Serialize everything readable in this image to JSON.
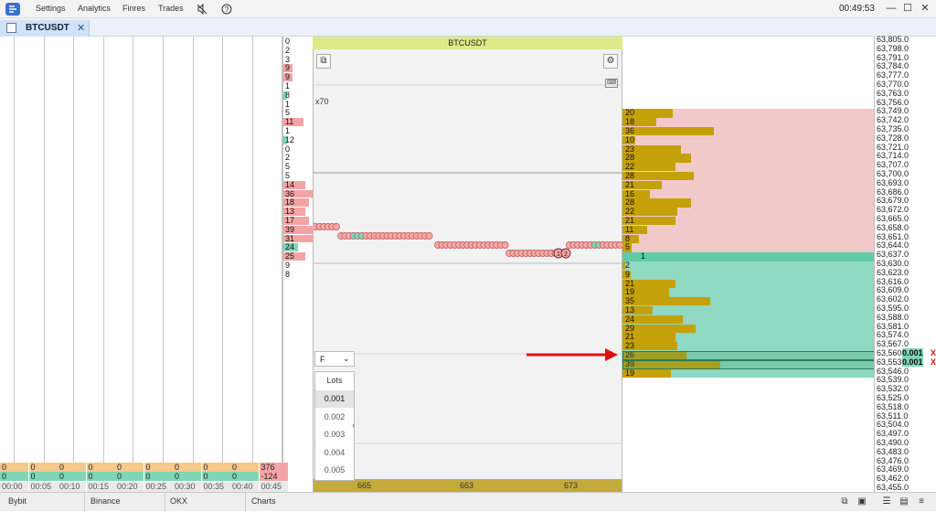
{
  "app": {
    "logo_icon": "app-logo-icon",
    "time": "00:49:53"
  },
  "menu": [
    "Settings",
    "Analytics",
    "Finres",
    "Trades"
  ],
  "menu_icons": [
    "mute-icon",
    "help-icon"
  ],
  "window_controls": {
    "minimize": "—",
    "maximize": "☐",
    "close": "✕"
  },
  "tab": {
    "label": "BTCUSDT",
    "close": "✕"
  },
  "chart": {
    "title": "BTCUSDT",
    "scale_label": "x70",
    "bottom_labels": [
      "665",
      "663",
      "673"
    ],
    "bubble_labels": [
      "1",
      "2"
    ]
  },
  "time_labels": [
    "00:00",
    "00:05",
    "00:10",
    "00:15",
    "00:20",
    "00:25",
    "00:30",
    "00:35",
    "00:40",
    "00:45"
  ],
  "bottom_rows": {
    "row1": [
      "0",
      "0",
      "0",
      "0",
      "0",
      "0",
      "0",
      "0",
      "0",
      "376"
    ],
    "row2": [
      "0",
      "0",
      "0",
      "0",
      "0",
      "0",
      "0",
      "0",
      "0",
      "-124"
    ]
  },
  "cluster_values": [
    "0",
    "2",
    "3",
    "9",
    "9",
    "1",
    "8",
    "1",
    "5",
    "11",
    "1",
    "12",
    "0",
    "2",
    "5",
    "5",
    "14",
    "36",
    "18",
    "13",
    "17",
    "39",
    "31",
    "24",
    "25",
    "9",
    "8"
  ],
  "prices": [
    "63,805.0",
    "63,798.0",
    "63,791.0",
    "63,784.0",
    "63,777.0",
    "63,770.0",
    "63,763.0",
    "63,756.0",
    "63,749.0",
    "63,742.0",
    "63,735.0",
    "63,728.0",
    "63,721.0",
    "63,714.0",
    "63,707.0",
    "63,700.0",
    "63,693.0",
    "63,686.0",
    "63,679.0",
    "63,672.0",
    "63,665.0",
    "63,658.0",
    "63,651.0",
    "63,644.0",
    "63,637.0",
    "63,630.0",
    "63,623.0",
    "63,616.0",
    "63,609.0",
    "63,602.0",
    "63,595.0",
    "63,588.0",
    "63,581.0",
    "63,574.0",
    "63,567.0",
    "63,560.0",
    "63,553.0",
    "63,546.0",
    "63,539.0",
    "63,532.0",
    "63,525.0",
    "63,518.0",
    "63,511.0",
    "63,504.0",
    "63,497.0",
    "63,490.0",
    "63,483.0",
    "63,476.0",
    "63,469.0",
    "63,462.0",
    "63,455.0"
  ],
  "ladder": {
    "ask_volumes": [
      "20",
      "18",
      "36",
      "10",
      "23",
      "28",
      "22",
      "28",
      "21",
      "16",
      "28",
      "22",
      "21",
      "11",
      "8",
      "5"
    ],
    "bid_volumes": [
      "2",
      "9",
      "21",
      "19",
      "35",
      "13",
      "24",
      "29",
      "21",
      "23",
      "26",
      "39",
      "19"
    ],
    "spread_trade": "1",
    "orders": [
      "0.001",
      "0.001"
    ],
    "order_cancel": "X"
  },
  "lots": {
    "mode": "F",
    "label": "Lots",
    "values": [
      "0.001",
      "0.002",
      "0.003",
      "0.004",
      "0.005"
    ]
  },
  "status_tabs": [
    "Bybit",
    "Binance",
    "OKX",
    "Charts"
  ],
  "colors": {
    "ask": "#f2c9c9",
    "bid": "#8fd8c1",
    "volume": "#c4a10a",
    "chart_header": "#dfe98a",
    "arrow": "#e01010"
  }
}
